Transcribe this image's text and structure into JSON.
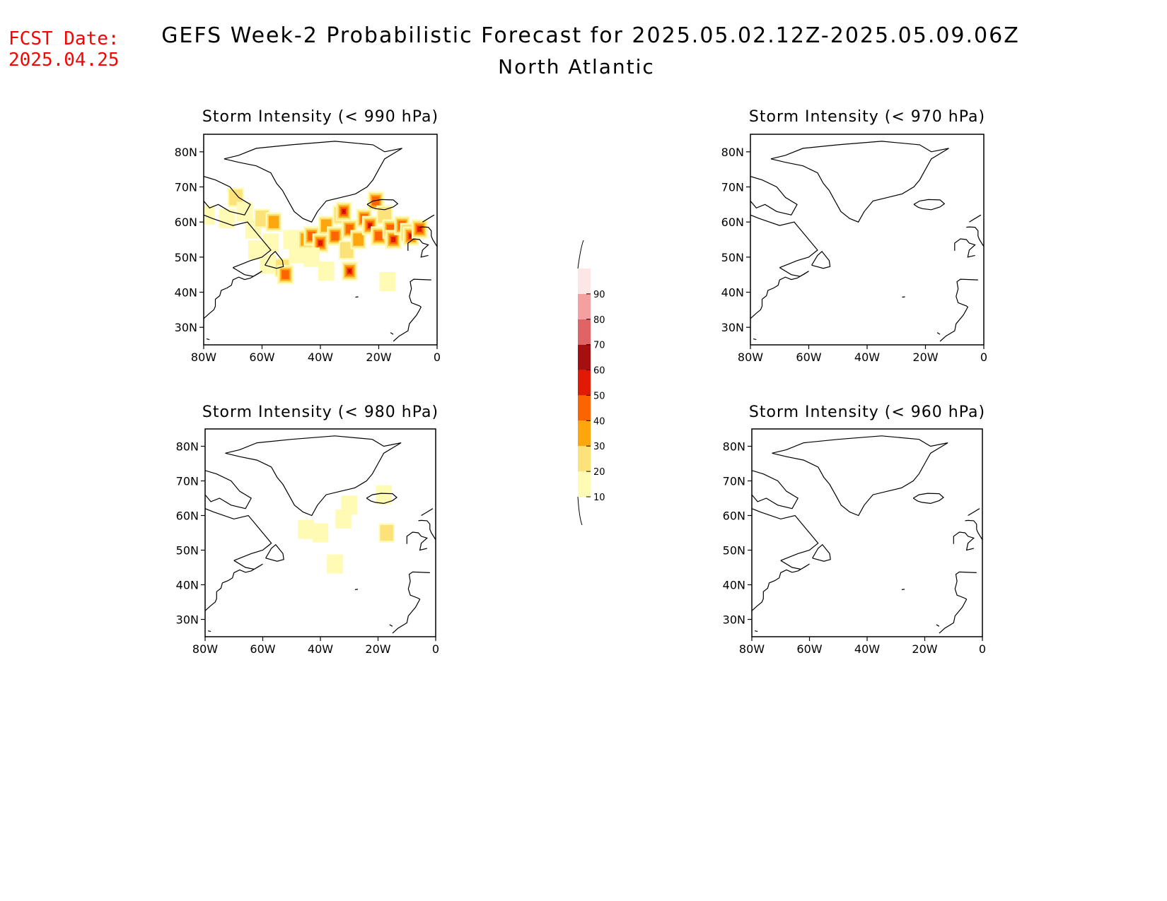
{
  "header": {
    "fcst_label": "FCST Date:",
    "fcst_date": "2025.04.25",
    "title": "GEFS Week-2 Probabilistic Forecast for 2025.05.02.12Z-2025.05.09.06Z",
    "region": "North Atlantic",
    "fcst_color": "#ff0000"
  },
  "axes": {
    "x_ticks": [
      "80W",
      "60W",
      "40W",
      "20W",
      "0"
    ],
    "y_ticks": [
      "80N",
      "70N",
      "60N",
      "50N",
      "40N",
      "30N"
    ],
    "lon_range": [
      -80,
      0
    ],
    "lat_range": [
      25,
      85
    ]
  },
  "panels": [
    {
      "id": "p990",
      "title": "Storm Intensity (< 990 hPa)"
    },
    {
      "id": "p970",
      "title": "Storm Intensity (< 970 hPa)"
    },
    {
      "id": "p980",
      "title": "Storm Intensity (< 980 hPa)"
    },
    {
      "id": "p960",
      "title": "Storm Intensity (< 960 hPa)"
    }
  ],
  "colorbar": {
    "labels": [
      "10",
      "20",
      "30",
      "40",
      "50",
      "60",
      "70",
      "80",
      "90"
    ],
    "colors": [
      "#fffab4",
      "#fde27a",
      "#fda60e",
      "#fd6400",
      "#e11a05",
      "#a50f0f",
      "#e06464",
      "#f5a0a0",
      "#fde6e6"
    ]
  },
  "probability_fields": {
    "p990": [
      {
        "lon": -79,
        "lat": 62,
        "p": 15
      },
      {
        "lon": -72,
        "lat": 61,
        "p": 15
      },
      {
        "lon": -69,
        "lat": 67,
        "p": 25
      },
      {
        "lon": -66,
        "lat": 63,
        "p": 15
      },
      {
        "lon": -63,
        "lat": 58,
        "p": 15
      },
      {
        "lon": -60,
        "lat": 61,
        "p": 25
      },
      {
        "lon": -56,
        "lat": 60,
        "p": 35
      },
      {
        "lon": -57,
        "lat": 54,
        "p": 15
      },
      {
        "lon": -62,
        "lat": 52,
        "p": 15
      },
      {
        "lon": -58,
        "lat": 48,
        "p": 15
      },
      {
        "lon": -53,
        "lat": 47,
        "p": 25
      },
      {
        "lon": -52,
        "lat": 45,
        "p": 45
      },
      {
        "lon": -50,
        "lat": 55,
        "p": 15
      },
      {
        "lon": -48,
        "lat": 51,
        "p": 15
      },
      {
        "lon": -45,
        "lat": 55,
        "p": 35
      },
      {
        "lon": -43,
        "lat": 56,
        "p": 45
      },
      {
        "lon": -40,
        "lat": 54,
        "p": 55
      },
      {
        "lon": -38,
        "lat": 59,
        "p": 35
      },
      {
        "lon": -35,
        "lat": 56,
        "p": 45
      },
      {
        "lon": -33,
        "lat": 62,
        "p": 35
      },
      {
        "lon": -32,
        "lat": 63,
        "p": 65
      },
      {
        "lon": -30,
        "lat": 58,
        "p": 45
      },
      {
        "lon": -31,
        "lat": 52,
        "p": 25
      },
      {
        "lon": -30,
        "lat": 46,
        "p": 65
      },
      {
        "lon": -27,
        "lat": 55,
        "p": 35
      },
      {
        "lon": -25,
        "lat": 61,
        "p": 45
      },
      {
        "lon": -23,
        "lat": 59,
        "p": 65
      },
      {
        "lon": -21,
        "lat": 66,
        "p": 45
      },
      {
        "lon": -20,
        "lat": 56,
        "p": 45
      },
      {
        "lon": -18,
        "lat": 62,
        "p": 25
      },
      {
        "lon": -16,
        "lat": 58,
        "p": 45
      },
      {
        "lon": -15,
        "lat": 55,
        "p": 55
      },
      {
        "lon": -12,
        "lat": 59,
        "p": 55
      },
      {
        "lon": -10,
        "lat": 57,
        "p": 75
      },
      {
        "lon": -9,
        "lat": 56,
        "p": 85
      },
      {
        "lon": -6,
        "lat": 58,
        "p": 55
      },
      {
        "lon": -17,
        "lat": 43,
        "p": 15
      },
      {
        "lon": -38,
        "lat": 46,
        "p": 15
      },
      {
        "lon": -43,
        "lat": 50,
        "p": 15
      }
    ],
    "p980": [
      {
        "lon": -30,
        "lat": 63,
        "p": 15
      },
      {
        "lon": -32,
        "lat": 59,
        "p": 15
      },
      {
        "lon": -18,
        "lat": 66,
        "p": 15
      },
      {
        "lon": -17,
        "lat": 55,
        "p": 25
      },
      {
        "lon": -35,
        "lat": 46,
        "p": 15
      },
      {
        "lon": -45,
        "lat": 56,
        "p": 15
      },
      {
        "lon": -40,
        "lat": 55,
        "p": 15
      }
    ],
    "p970": [],
    "p960": []
  }
}
